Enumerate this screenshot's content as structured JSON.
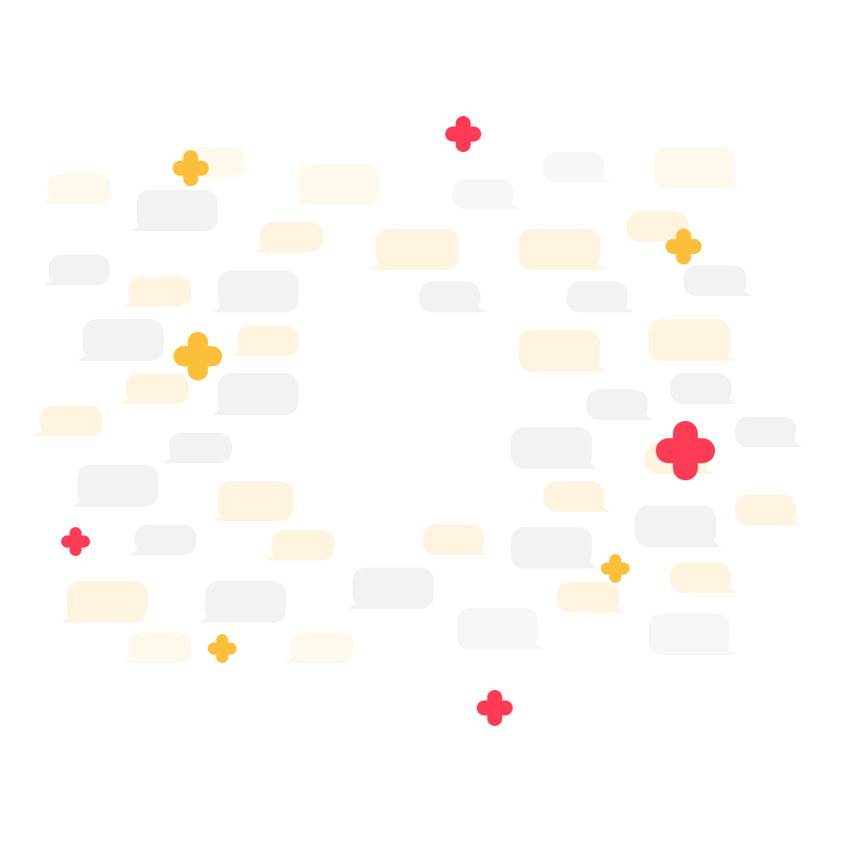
{
  "illustration": {
    "colors": {
      "background": "#ffffff",
      "bubble_gray": "#f2f2f2",
      "bubble_gray_light": "#f7f7f7",
      "bubble_yellow": "#fff4e0",
      "bubble_yellow_light": "#fff8ec",
      "sparkle_yellow": "#fbbf3a",
      "sparkle_red": "#ff3b55"
    },
    "icons": {
      "bubble": "speech-bubble-icon",
      "sparkle": "plus-sparkle-icon"
    }
  }
}
